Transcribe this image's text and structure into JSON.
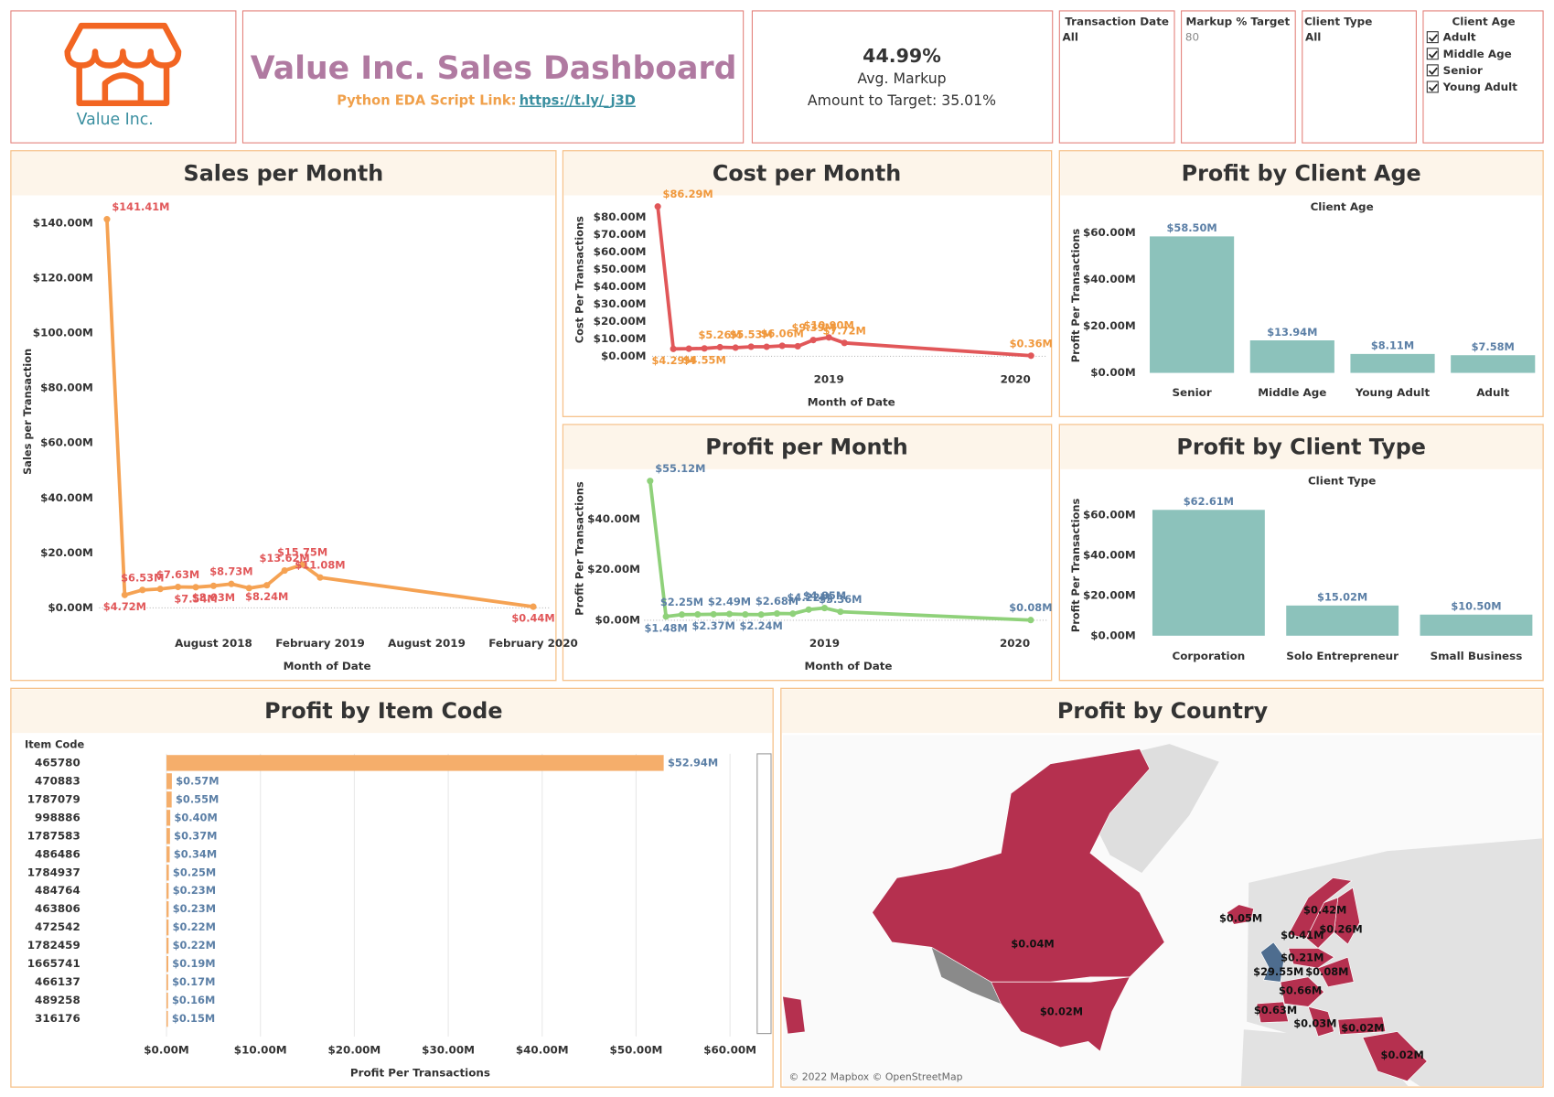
{
  "header": {
    "logo_text": "Value Inc.",
    "title": "Value Inc. Sales Dashboard",
    "link_label": "Python EDA Script Link:",
    "link": "https://t.ly/_j3D"
  },
  "kpi": {
    "value": "44.99%",
    "label": "Avg. Markup",
    "target": "Amount to Target: 35.01%"
  },
  "filters": [
    {
      "title": "Transaction Date",
      "value": "All"
    },
    {
      "title": "Markup % Target",
      "value": "80"
    },
    {
      "title": "Client Type",
      "value": "All"
    },
    {
      "title": "Client Age",
      "options": [
        "Adult",
        "Middle Age",
        "Senior",
        "Young Adult"
      ]
    }
  ],
  "chart_data": [
    {
      "type": "line",
      "title": "Sales per Month",
      "x_label": "Month of Date",
      "y_label": "Sales per Transaction",
      "x": [
        "2018-02",
        "2018-03",
        "2018-04",
        "2018-05",
        "2018-06",
        "2018-07",
        "2018-08",
        "2018-09",
        "2018-10",
        "2018-11",
        "2018-12",
        "2019-01",
        "2019-02",
        "2020-02"
      ],
      "values": [
        141.41,
        4.72,
        6.53,
        6.9,
        7.63,
        7.54,
        8.03,
        8.73,
        7.2,
        8.24,
        13.62,
        15.75,
        11.08,
        0.44
      ],
      "value_labels": [
        "$141.41M",
        "$4.72M",
        "$6.53M",
        null,
        "$7.63M",
        "$7.54M",
        "$8.03M",
        "$8.73M",
        null,
        "$8.24M",
        "$13.62M",
        "$15.75M",
        "$11.08M",
        "$0.44M"
      ],
      "color": "#f5a253",
      "label_color": "#e15759",
      "xlim": [
        "2018-01",
        "2020-03"
      ],
      "xticks": [
        {
          "value": "2018-08",
          "label": "August 2018"
        },
        {
          "value": "2019-02",
          "label": "February 2019"
        },
        {
          "value": "2019-08",
          "label": "August 2019"
        },
        {
          "value": "2020-02",
          "label": "February 2020"
        }
      ],
      "ylim": [
        -4,
        149
      ],
      "yticks": [
        {
          "value": 0,
          "label": "$0.00M"
        },
        {
          "value": 20,
          "label": "$20.00M"
        },
        {
          "value": 40,
          "label": "$40.00M"
        },
        {
          "value": 60,
          "label": "$60.00M"
        },
        {
          "value": 80,
          "label": "$80.00M"
        },
        {
          "value": 100,
          "label": "$100.00M"
        },
        {
          "value": 120,
          "label": "$120.00M"
        },
        {
          "value": 140,
          "label": "$140.00M"
        }
      ]
    },
    {
      "type": "line",
      "title": "Cost per Month",
      "x_label": "Month of Date",
      "y_label": "Cost Per Transactions",
      "x": [
        "2018-02",
        "2018-03",
        "2018-04",
        "2018-05",
        "2018-06",
        "2018-07",
        "2018-08",
        "2018-09",
        "2018-10",
        "2018-11",
        "2018-12",
        "2019-01",
        "2019-02",
        "2020-02"
      ],
      "values": [
        86.29,
        4.29,
        4.4,
        4.55,
        5.26,
        5.0,
        5.53,
        5.5,
        6.06,
        5.8,
        9.39,
        10.9,
        7.72,
        0.36
      ],
      "value_labels": [
        "$86.29M",
        "$4.29M",
        null,
        "$4.55M",
        "$5.26M",
        null,
        "$5.53M",
        null,
        "$6.06M",
        null,
        "$9.39M",
        "$10.90M",
        "$7.72M",
        "$0.36M"
      ],
      "color": "#e15759",
      "label_color": "#f0983c",
      "xlim": [
        "2018-01",
        "2020-03"
      ],
      "xticks": [
        {
          "value": "2019-01",
          "label": "2019"
        },
        {
          "value": "2020-01",
          "label": "2020"
        }
      ],
      "ylim": [
        -5,
        91
      ],
      "yticks": [
        {
          "value": 0,
          "label": "$0.00M"
        },
        {
          "value": 10,
          "label": "$10.00M"
        },
        {
          "value": 20,
          "label": "$20.00M"
        },
        {
          "value": 30,
          "label": "$30.00M"
        },
        {
          "value": 40,
          "label": "$40.00M"
        },
        {
          "value": 50,
          "label": "$50.00M"
        },
        {
          "value": 60,
          "label": "$60.00M"
        },
        {
          "value": 70,
          "label": "$70.00M"
        },
        {
          "value": 80,
          "label": "$80.00M"
        }
      ]
    },
    {
      "type": "line",
      "title": "Profit per Month",
      "x_label": "Month of Date",
      "y_label": "Profit Per Transactions",
      "x": [
        "2018-02",
        "2018-03",
        "2018-04",
        "2018-05",
        "2018-06",
        "2018-07",
        "2018-08",
        "2018-09",
        "2018-10",
        "2018-11",
        "2018-12",
        "2019-01",
        "2019-02",
        "2020-02"
      ],
      "values": [
        55.12,
        1.48,
        2.25,
        2.3,
        2.37,
        2.49,
        2.3,
        2.24,
        2.68,
        2.6,
        4.22,
        4.85,
        3.36,
        0.08
      ],
      "value_labels": [
        "$55.12M",
        "$1.48M",
        "$2.25M",
        null,
        "$2.37M",
        "$2.49M",
        null,
        "$2.24M",
        "$2.68M",
        null,
        "$4.22M",
        "$4.85M",
        "$3.36M",
        "$0.08M"
      ],
      "color": "#8fd17a",
      "label_color": "#5b7fa6",
      "xlim": [
        "2018-01",
        "2020-03"
      ],
      "xticks": [
        {
          "value": "2019-01",
          "label": "2019"
        },
        {
          "value": "2020-01",
          "label": "2020"
        }
      ],
      "ylim": [
        -3,
        59
      ],
      "yticks": [
        {
          "value": 0,
          "label": "$0.00M"
        },
        {
          "value": 20,
          "label": "$20.00M"
        },
        {
          "value": 40,
          "label": "$40.00M"
        }
      ]
    },
    {
      "type": "bar",
      "title": "Profit by Client Age",
      "header": "Client Age",
      "y_label": "Profit Per Transactions",
      "categories": [
        "Senior",
        "Middle Age",
        "Young Adult",
        "Adult"
      ],
      "values": [
        58.5,
        13.94,
        8.11,
        7.58
      ],
      "value_labels": [
        "$58.50M",
        "$13.94M",
        "$8.11M",
        "$7.58M"
      ],
      "color": "#8cc2bb",
      "label_color": "#5b7fa6",
      "ylim": [
        -3,
        68
      ],
      "yticks": [
        {
          "value": 0,
          "label": "$0.00M"
        },
        {
          "value": 20,
          "label": "$20.00M"
        },
        {
          "value": 40,
          "label": "$40.00M"
        },
        {
          "value": 60,
          "label": "$60.00M"
        }
      ]
    },
    {
      "type": "bar",
      "title": "Profit by Client Type",
      "header": "Client Type",
      "y_label": "Profit Per Transactions",
      "categories": [
        "Corporation",
        "Solo Entrepreneur",
        "Small Business"
      ],
      "values": [
        62.61,
        15.02,
        10.5
      ],
      "value_labels": [
        "$62.61M",
        "$15.02M",
        "$10.50M"
      ],
      "color": "#8cc2bb",
      "label_color": "#5b7fa6",
      "ylim": [
        -3,
        73
      ],
      "yticks": [
        {
          "value": 0,
          "label": "$0.00M"
        },
        {
          "value": 20,
          "label": "$20.00M"
        },
        {
          "value": 40,
          "label": "$40.00M"
        },
        {
          "value": 60,
          "label": "$60.00M"
        }
      ]
    },
    {
      "type": "hbar",
      "title": "Profit by Item Code",
      "category_label": "Item Code",
      "x_label": "Profit Per Transactions",
      "categories": [
        "465780",
        "470883",
        "1787079",
        "998886",
        "1787583",
        "486486",
        "1784937",
        "484764",
        "463806",
        "472542",
        "1782459",
        "1665741",
        "466137",
        "489258",
        "316176"
      ],
      "values": [
        52.94,
        0.57,
        0.55,
        0.4,
        0.37,
        0.34,
        0.25,
        0.23,
        0.23,
        0.22,
        0.22,
        0.19,
        0.17,
        0.16,
        0.15
      ],
      "value_labels": [
        "$52.94M",
        "$0.57M",
        "$0.55M",
        "$0.40M",
        "$0.37M",
        "$0.34M",
        "$0.25M",
        "$0.23M",
        "$0.23M",
        "$0.22M",
        "$0.22M",
        "$0.19M",
        "$0.17M",
        "$0.16M",
        "$0.15M"
      ],
      "color": "#f5ae6b",
      "label_color": "#5b7fa6",
      "grid": true,
      "xlim": [
        0,
        63
      ],
      "xticks": [
        {
          "value": 0,
          "label": "$0.00M"
        },
        {
          "value": 10,
          "label": "$10.00M"
        },
        {
          "value": 20,
          "label": "$20.00M"
        },
        {
          "value": 30,
          "label": "$30.00M"
        },
        {
          "value": 40,
          "label": "$40.00M"
        },
        {
          "value": 50,
          "label": "$50.00M"
        },
        {
          "value": 60,
          "label": "$60.00M"
        }
      ]
    },
    {
      "type": "map",
      "title": "Profit by Country",
      "attribution": "© 2022 Mapbox © OpenStreetMap",
      "values": [
        0.04,
        0.02,
        0.05,
        0.42,
        0.26,
        0.41,
        0.21,
        29.55,
        0.08,
        0.66,
        0.63,
        0.03,
        0.02,
        0.02
      ],
      "value_labels": [
        "$0.04M",
        "$0.02M",
        "$0.05M",
        "$0.42M",
        "$0.26M",
        "$0.41M",
        "$0.21M",
        "$29.55M",
        "$0.08M",
        "$0.66M",
        "$0.63M",
        "$0.03M",
        "$0.02M",
        "$0.02M"
      ],
      "color": "#b5304f",
      "color_max": "#4e6d8f"
    }
  ]
}
